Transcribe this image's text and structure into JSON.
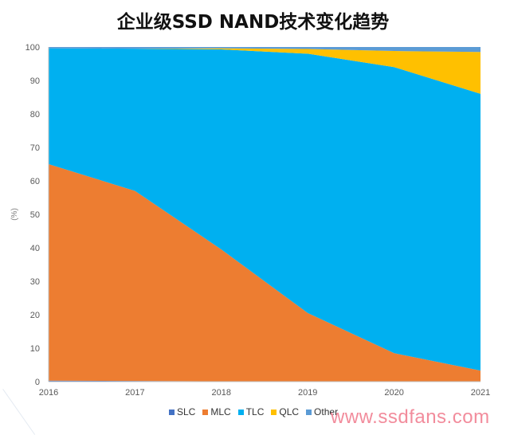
{
  "chart_data": {
    "type": "area",
    "stacked": true,
    "title": "企业级SSD NAND技术变化趋势",
    "ylabel": "(%)",
    "xlabel": "",
    "x": [
      "2016",
      "2017",
      "2018",
      "2019",
      "2020",
      "2021"
    ],
    "ylim": [
      0,
      100
    ],
    "yticks": [
      0,
      10,
      20,
      30,
      40,
      50,
      60,
      70,
      80,
      90,
      100
    ],
    "grid": false,
    "legend_position": "bottom",
    "series": [
      {
        "name": "SLC",
        "color": "#4472c4",
        "values": [
          0.3,
          0.2,
          0.1,
          0.1,
          0.1,
          0.1
        ]
      },
      {
        "name": "MLC",
        "color": "#ed7d31",
        "values": [
          64.7,
          56.8,
          39.4,
          20.4,
          8.4,
          3.2
        ]
      },
      {
        "name": "TLC",
        "color": "#00b0f0",
        "values": [
          34.6,
          42.5,
          59.8,
          77.5,
          85.5,
          82.7
        ]
      },
      {
        "name": "QLC",
        "color": "#ffc000",
        "values": [
          0.0,
          0.0,
          0.3,
          1.4,
          4.8,
          12.5
        ]
      },
      {
        "name": "Other",
        "color": "#5b9bd5",
        "values": [
          0.4,
          0.5,
          0.4,
          0.6,
          1.2,
          1.5
        ]
      }
    ]
  },
  "watermark": "www.ssdfans.com"
}
